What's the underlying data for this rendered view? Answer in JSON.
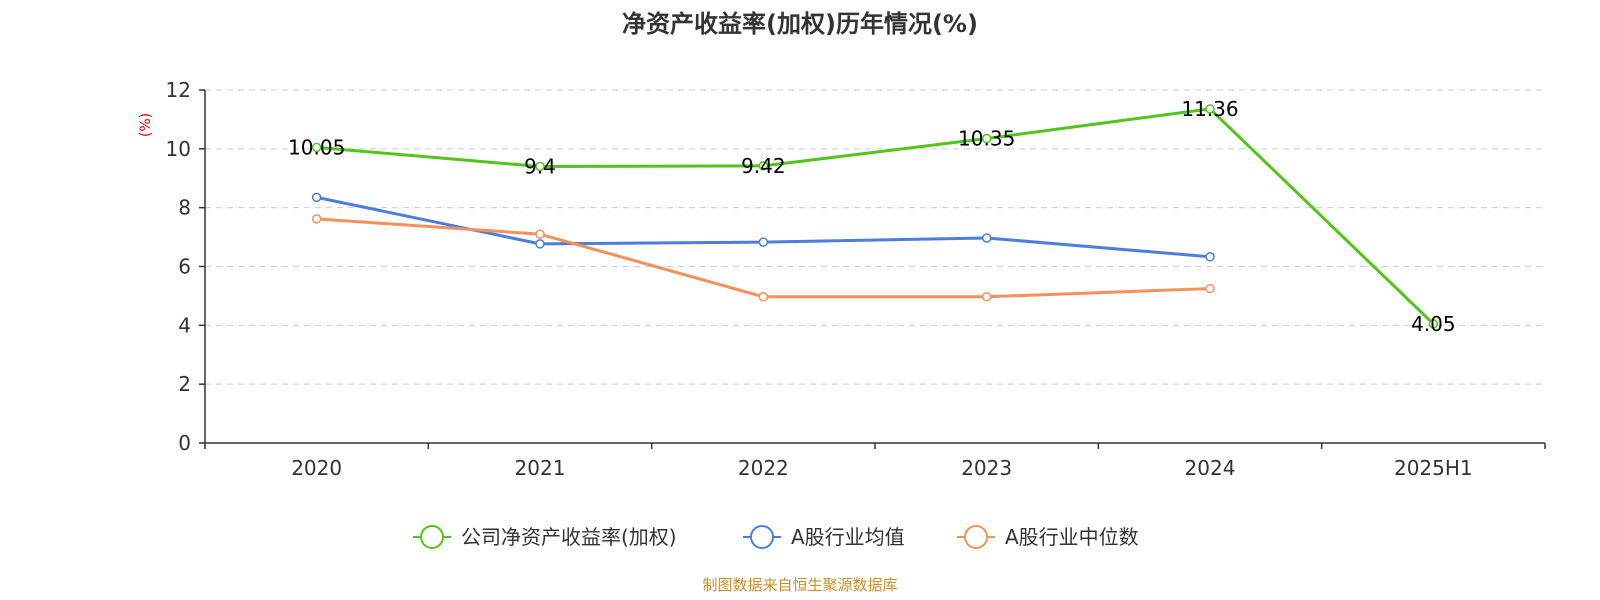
{
  "chart_data": {
    "type": "line",
    "title": "净资产收益率(加权)历年情况(%)",
    "ylabel": "(%)",
    "ylim": [
      0,
      12
    ],
    "yticks": [
      0,
      2,
      4,
      6,
      8,
      10,
      12
    ],
    "categories": [
      "2020",
      "2021",
      "2022",
      "2023",
      "2024",
      "2025H1"
    ],
    "grid": true,
    "legend_position": "bottom",
    "series": [
      {
        "name": "公司净资产收益率(加权)",
        "color": "#52c41a",
        "values": [
          10.05,
          9.4,
          9.42,
          10.35,
          11.36,
          4.05
        ],
        "labels": [
          "10.05",
          "9.4",
          "9.42",
          "10.35",
          "11.36",
          "4.05"
        ],
        "show_labels": true
      },
      {
        "name": "A股行业均值",
        "color": "#4a7fdb",
        "values": [
          8.35,
          6.77,
          6.83,
          6.97,
          6.33,
          null
        ],
        "show_labels": false
      },
      {
        "name": "A股行业中位数",
        "color": "#f5905a",
        "values": [
          7.62,
          7.1,
          4.97,
          4.97,
          5.25,
          null
        ],
        "show_labels": false
      }
    ]
  },
  "source": "制图数据来自恒生聚源数据库",
  "colors": {
    "axis": "#333333",
    "grid": "#cccccc",
    "ylabel": "#e00000",
    "source": "#c8902a"
  }
}
